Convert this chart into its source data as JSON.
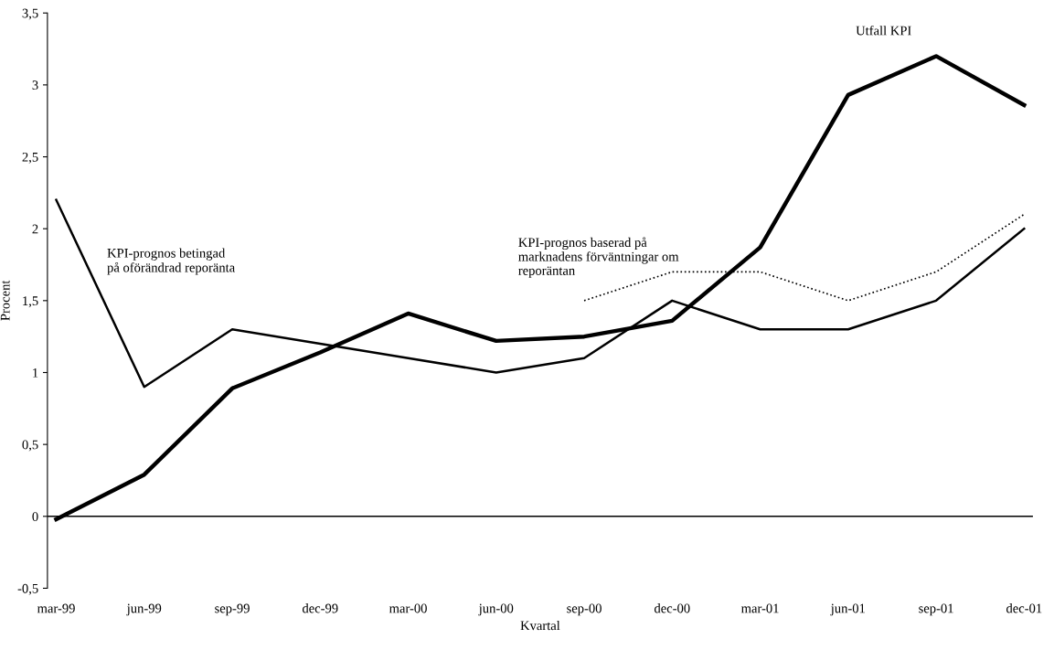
{
  "chart_data": {
    "type": "line",
    "xlabel": "Kvartal",
    "ylabel": "Procent",
    "categories": [
      "mar-99",
      "jun-99",
      "sep-99",
      "dec-99",
      "mar-00",
      "jun-00",
      "sep-00",
      "dec-00",
      "mar-01",
      "jun-01",
      "sep-01",
      "dec-01"
    ],
    "series": [
      {
        "name": "Utfall KPI",
        "color": "#000000",
        "line_style": "solid",
        "values": [
          -0.02,
          0.29,
          0.89,
          1.14,
          1.41,
          1.22,
          1.25,
          1.36,
          1.87,
          2.93,
          3.2,
          2.86
        ]
      },
      {
        "name": "KPI-prognos betingad\npå oförändrad reporänta",
        "color": "#000000",
        "line_style": "solid",
        "values": [
          2.2,
          0.9,
          1.3,
          1.2,
          1.1,
          1.0,
          1.1,
          1.5,
          1.3,
          1.3,
          1.5,
          2.0
        ]
      },
      {
        "name": "KPI-prognos baserad på\nmarknadens förväntningar om\nreporäntan",
        "color": "#000000",
        "line_style": "dotted",
        "values": [
          null,
          null,
          null,
          null,
          null,
          null,
          1.5,
          1.7,
          1.7,
          1.5,
          1.7,
          2.1
        ]
      }
    ],
    "ylim": [
      -0.5,
      3.5
    ],
    "yticks": [
      {
        "value": -0.5,
        "label": "-0,5"
      },
      0,
      {
        "value": 0.5,
        "label": "0,5"
      },
      1,
      {
        "value": 1.5,
        "label": "1,5"
      },
      2,
      {
        "value": 2.5,
        "label": "2,5"
      },
      3,
      {
        "value": 3.5,
        "label": "3,5"
      }
    ],
    "ref_lines": [
      {
        "axis": "y",
        "value": 0,
        "color": "#000000"
      }
    ],
    "grid": false,
    "legend": false,
    "marker": "none"
  }
}
